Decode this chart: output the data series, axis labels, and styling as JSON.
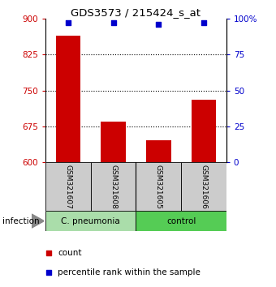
{
  "title": "GDS3573 / 215424_s_at",
  "samples": [
    "GSM321607",
    "GSM321608",
    "GSM321605",
    "GSM321606"
  ],
  "counts": [
    865,
    685,
    645,
    730
  ],
  "percentiles": [
    97,
    97,
    96,
    97
  ],
  "bar_color": "#cc0000",
  "dot_color": "#0000cc",
  "ylim_left": [
    600,
    900
  ],
  "ylim_right": [
    0,
    100
  ],
  "yticks_left": [
    600,
    675,
    750,
    825,
    900
  ],
  "yticks_right": [
    0,
    25,
    50,
    75,
    100
  ],
  "ytick_labels_right": [
    "0",
    "25",
    "50",
    "75",
    "100%"
  ],
  "groups": [
    {
      "label": "C. pneumonia",
      "color": "#aaddaa"
    },
    {
      "label": "control",
      "color": "#55cc55"
    }
  ],
  "group_label": "infection",
  "legend_items": [
    {
      "color": "#cc0000",
      "label": "count"
    },
    {
      "color": "#0000cc",
      "label": "percentile rank within the sample"
    }
  ],
  "bar_width": 0.55,
  "label_color_left": "#cc0000",
  "label_color_right": "#0000cc"
}
